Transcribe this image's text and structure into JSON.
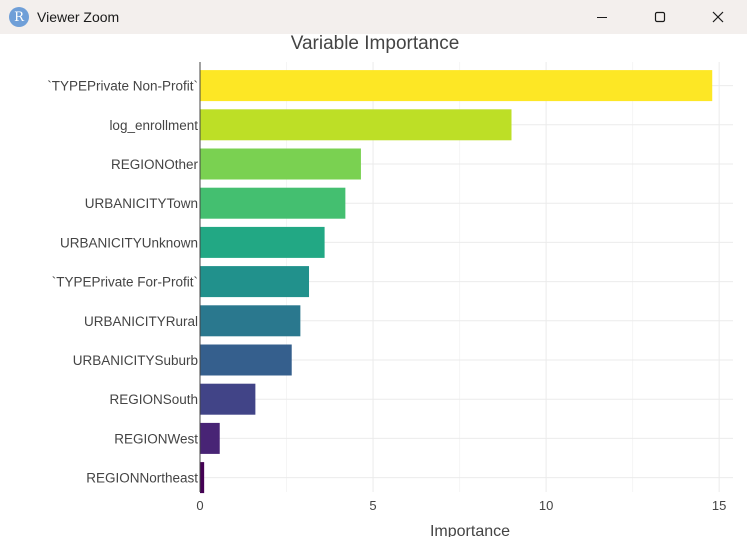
{
  "window": {
    "title": "Viewer Zoom",
    "app_icon_letter": "R"
  },
  "colors": {
    "titlebar_bg": "#f3efed",
    "grid": "#ebebeb",
    "axis_text": "#444444",
    "title_text": "#444444"
  },
  "chart_data": {
    "type": "bar",
    "orientation": "horizontal",
    "title": "Variable Importance",
    "xlabel": "Importance",
    "ylabel": "",
    "xlim": [
      0,
      15.4
    ],
    "xticks": [
      0,
      5,
      10,
      15
    ],
    "grid": true,
    "categories": [
      "`TYPEPrivate Non-Profit`",
      "log_enrollment",
      "REGIONOther",
      "URBANICITYTown",
      "URBANICITYUnknown",
      "`TYPEPrivate For-Profit`",
      "URBANICITYRural",
      "URBANICITYSuburb",
      "REGIONSouth",
      "REGIONWest",
      "REGIONNortheast"
    ],
    "values": [
      14.8,
      9.0,
      4.65,
      4.2,
      3.6,
      3.15,
      2.9,
      2.65,
      1.6,
      0.57,
      0.12
    ],
    "colors": [
      "#fde725",
      "#bddf26",
      "#7ad151",
      "#44bf70",
      "#22a884",
      "#21918c",
      "#2a788e",
      "#355f8d",
      "#414487",
      "#482475",
      "#440154"
    ]
  }
}
